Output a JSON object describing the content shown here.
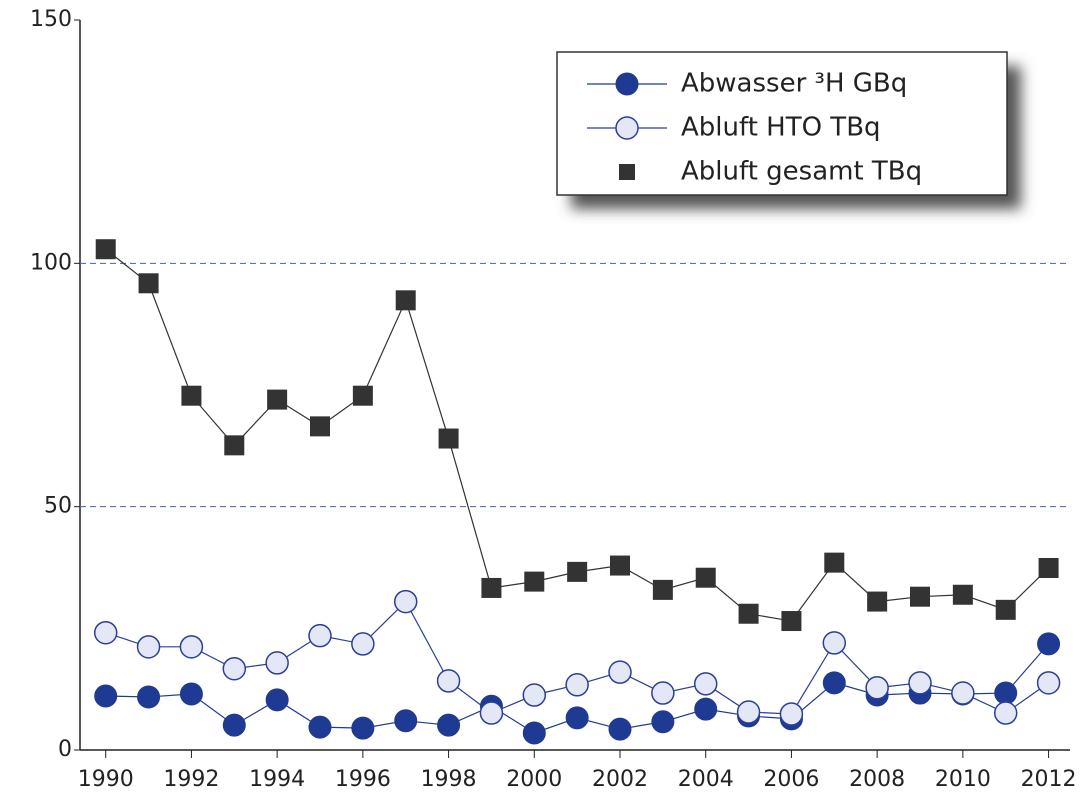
{
  "chart_data": {
    "type": "line",
    "x": [
      1990,
      1991,
      1992,
      1993,
      1994,
      1995,
      1996,
      1997,
      1998,
      1999,
      2000,
      2001,
      2002,
      2003,
      2004,
      2005,
      2006,
      2007,
      2008,
      2009,
      2010,
      2011,
      2012
    ],
    "series": [
      {
        "name": "Abwasser ³H GBq",
        "color": "#1f3a93",
        "marker": "filled-circle",
        "values": [
          11.1,
          10.9,
          11.5,
          5.1,
          10.3,
          4.7,
          4.5,
          6,
          5.1,
          9,
          3.5,
          6.6,
          4.3,
          5.8,
          8.4,
          7,
          6.4,
          13.8,
          11.3,
          11.7,
          11.5,
          11.7,
          21.8
        ]
      },
      {
        "name": "Abluft HTO TBq",
        "color": "#2a3f9a",
        "marker": "open-circle",
        "values": [
          24.1,
          21.2,
          21.2,
          16.7,
          17.9,
          23.5,
          21.8,
          30.5,
          14.2,
          7.6,
          11.3,
          13.4,
          16,
          11.7,
          13.6,
          7.8,
          7.4,
          22,
          12.8,
          13.8,
          11.7,
          7.6,
          13.8
        ]
      },
      {
        "name": "Abluft gesamt TBq",
        "color": "#333333",
        "marker": "square",
        "values": [
          102.9,
          95.9,
          72.8,
          62.6,
          72,
          66.5,
          72.8,
          92.4,
          64,
          33.3,
          34.6,
          36.6,
          37.9,
          32.9,
          35.4,
          28,
          26.5,
          38.5,
          30.5,
          31.5,
          31.9,
          28.8,
          37.4
        ]
      }
    ],
    "xlim": [
      1989.4,
      2012.5
    ],
    "xticks": [
      1990,
      1992,
      1994,
      1996,
      1998,
      2000,
      2002,
      2004,
      2006,
      2008,
      2010,
      2012
    ],
    "ylim": [
      0,
      150
    ],
    "yticks": [
      0,
      50,
      100,
      150
    ],
    "grid": true,
    "legend": "top-right"
  }
}
